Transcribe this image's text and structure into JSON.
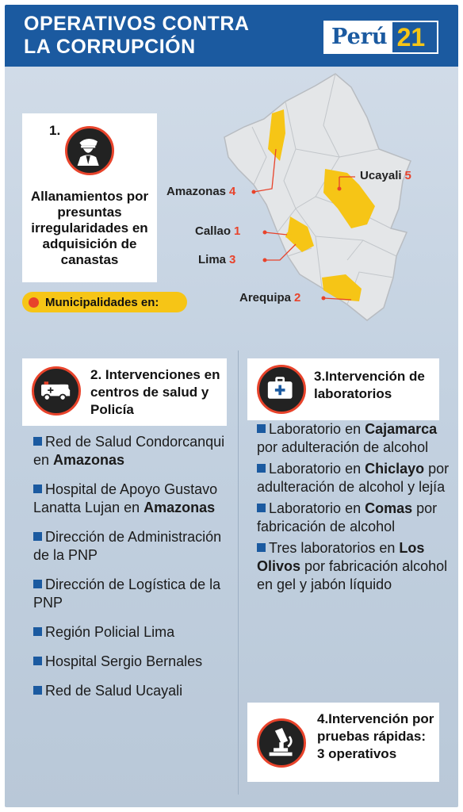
{
  "header": {
    "title": "OPERATIVOS CONTRA\nLA CORRUPCIÓN",
    "logo_text": "Perú",
    "logo_number": "21"
  },
  "colors": {
    "header_blue": "#1b5aa0",
    "accent_red": "#e8432b",
    "highlight_yellow": "#f6c516"
  },
  "section1": {
    "number": "1.",
    "icon": "police-officer-icon",
    "text": "Allanamientos por presuntas irregularidades en adquisición de canastas",
    "pill": "Municipalidades en:"
  },
  "map": {
    "labels": [
      {
        "region": "Amazonas",
        "count": "4"
      },
      {
        "region": "Ucayali",
        "count": "5"
      },
      {
        "region": "Callao",
        "count": "1"
      },
      {
        "region": "Lima",
        "count": "3"
      },
      {
        "region": "Arequipa",
        "count": "2"
      }
    ]
  },
  "section2": {
    "title": "2. Intervenciones en centros de salud y Policía",
    "icon": "ambulance-icon",
    "items": [
      {
        "pre": "Red de Salud Condorcanqui en ",
        "bold": "Amazonas",
        "post": ""
      },
      {
        "pre": "Hospital de Apoyo Gustavo Lanatta Lujan en ",
        "bold": "Amazonas",
        "post": ""
      },
      {
        "pre": "Dirección de Administración de la PNP",
        "bold": "",
        "post": ""
      },
      {
        "pre": "Dirección de Logística de la PNP",
        "bold": "",
        "post": ""
      },
      {
        "pre": "Región Policial Lima",
        "bold": "",
        "post": ""
      },
      {
        "pre": "Hospital Sergio Bernales",
        "bold": "",
        "post": ""
      },
      {
        "pre": "Red de Salud Ucayali",
        "bold": "",
        "post": ""
      }
    ]
  },
  "section3": {
    "title": "3.Intervención de laboratorios",
    "icon": "first-aid-kit-icon",
    "items": [
      {
        "pre": "Laboratorio en ",
        "bold": "Cajamarca",
        "post": " por adulteración de alcohol"
      },
      {
        "pre": "Laboratorio en ",
        "bold": "Chiclayo",
        "post": " por adulteración de alcohol y lejía"
      },
      {
        "pre": "Laboratorio en ",
        "bold": "Comas",
        "post": " por fabricación de alcohol"
      },
      {
        "pre": "Tres laboratorios en ",
        "bold": "Los Olivos",
        "post": " por fabricación alcohol en gel y jabón líquido"
      }
    ]
  },
  "section4": {
    "title": "4.Intervención por pruebas rápidas: 3 operativos",
    "icon": "microscope-icon"
  }
}
